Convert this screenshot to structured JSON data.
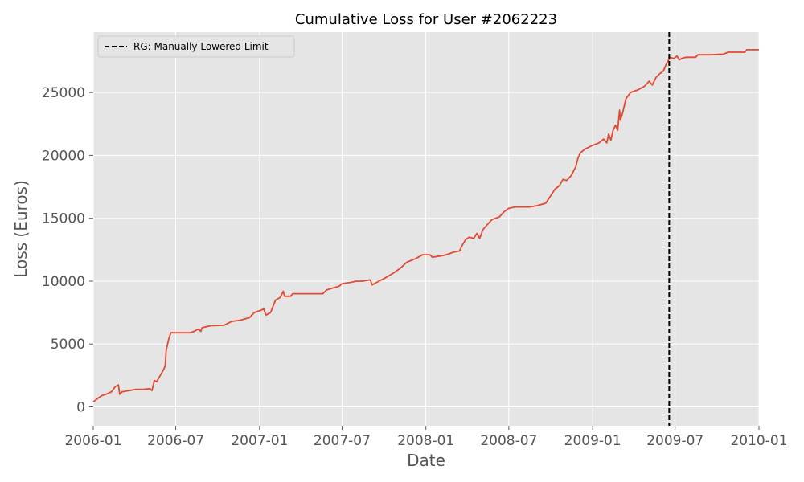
{
  "chart_data": {
    "type": "line",
    "title": "Cumulative Loss for User #2062223",
    "xlabel": "Date",
    "ylabel": "Loss (Euros)",
    "xlim": [
      "2006-01-01",
      "2010-01-01"
    ],
    "ylim": [
      -1500,
      29800
    ],
    "x_ticks": [
      "2006-01",
      "2006-07",
      "2007-01",
      "2007-07",
      "2008-01",
      "2008-07",
      "2009-01",
      "2009-07",
      "2010-01"
    ],
    "y_ticks": [
      0,
      5000,
      10000,
      15000,
      20000,
      25000
    ],
    "grid": true,
    "background": "#e5e5e5",
    "series": [
      {
        "color": "#e24a33",
        "points": [
          [
            "2006-01-01",
            400
          ],
          [
            "2006-01-10",
            650
          ],
          [
            "2006-01-20",
            900
          ],
          [
            "2006-02-01",
            1050
          ],
          [
            "2006-02-10",
            1200
          ],
          [
            "2006-02-18",
            1600
          ],
          [
            "2006-02-25",
            1750
          ],
          [
            "2006-02-28",
            1000
          ],
          [
            "2006-03-05",
            1200
          ],
          [
            "2006-03-20",
            1300
          ],
          [
            "2006-04-05",
            1400
          ],
          [
            "2006-04-20",
            1400
          ],
          [
            "2006-05-05",
            1450
          ],
          [
            "2006-05-10",
            1300
          ],
          [
            "2006-05-15",
            2100
          ],
          [
            "2006-05-20",
            2000
          ],
          [
            "2006-05-28",
            2500
          ],
          [
            "2006-06-05",
            3000
          ],
          [
            "2006-06-08",
            3300
          ],
          [
            "2006-06-10",
            4500
          ],
          [
            "2006-06-15",
            5300
          ],
          [
            "2006-06-20",
            5900
          ],
          [
            "2006-07-01",
            5900
          ],
          [
            "2006-08-01",
            5900
          ],
          [
            "2006-08-10",
            6000
          ],
          [
            "2006-08-20",
            6200
          ],
          [
            "2006-08-25",
            6000
          ],
          [
            "2006-08-28",
            6300
          ],
          [
            "2006-09-15",
            6450
          ],
          [
            "2006-10-15",
            6500
          ],
          [
            "2006-11-01",
            6800
          ],
          [
            "2006-11-20",
            6900
          ],
          [
            "2006-12-10",
            7100
          ],
          [
            "2006-12-20",
            7500
          ],
          [
            "2007-01-05",
            7700
          ],
          [
            "2007-01-10",
            7800
          ],
          [
            "2007-01-15",
            7300
          ],
          [
            "2007-01-25",
            7500
          ],
          [
            "2007-02-05",
            8500
          ],
          [
            "2007-02-15",
            8700
          ],
          [
            "2007-02-22",
            9200
          ],
          [
            "2007-02-25",
            8800
          ],
          [
            "2007-03-10",
            8800
          ],
          [
            "2007-03-15",
            9000
          ],
          [
            "2007-04-15",
            9000
          ],
          [
            "2007-05-20",
            9000
          ],
          [
            "2007-05-28",
            9300
          ],
          [
            "2007-06-15",
            9500
          ],
          [
            "2007-06-25",
            9600
          ],
          [
            "2007-07-01",
            9800
          ],
          [
            "2007-07-20",
            9900
          ],
          [
            "2007-08-01",
            10000
          ],
          [
            "2007-08-15",
            10000
          ],
          [
            "2007-09-01",
            10100
          ],
          [
            "2007-09-05",
            9700
          ],
          [
            "2007-09-15",
            9900
          ],
          [
            "2007-10-01",
            10200
          ],
          [
            "2007-10-20",
            10600
          ],
          [
            "2007-11-05",
            11000
          ],
          [
            "2007-11-20",
            11500
          ],
          [
            "2007-12-10",
            11800
          ],
          [
            "2007-12-25",
            12100
          ],
          [
            "2008-01-10",
            12100
          ],
          [
            "2008-01-15",
            11900
          ],
          [
            "2008-02-01",
            12000
          ],
          [
            "2008-02-15",
            12100
          ],
          [
            "2008-03-01",
            12300
          ],
          [
            "2008-03-15",
            12400
          ],
          [
            "2008-03-20",
            12800
          ],
          [
            "2008-03-28",
            13300
          ],
          [
            "2008-04-05",
            13500
          ],
          [
            "2008-04-15",
            13400
          ],
          [
            "2008-04-22",
            13800
          ],
          [
            "2008-04-28",
            13400
          ],
          [
            "2008-05-05",
            14100
          ],
          [
            "2008-05-15",
            14500
          ],
          [
            "2008-05-25",
            14900
          ],
          [
            "2008-06-10",
            15100
          ],
          [
            "2008-06-20",
            15500
          ],
          [
            "2008-07-01",
            15800
          ],
          [
            "2008-07-15",
            15900
          ],
          [
            "2008-08-15",
            15900
          ],
          [
            "2008-09-01",
            16000
          ],
          [
            "2008-09-20",
            16200
          ],
          [
            "2008-10-01",
            16800
          ],
          [
            "2008-10-10",
            17300
          ],
          [
            "2008-10-20",
            17600
          ],
          [
            "2008-10-28",
            18100
          ],
          [
            "2008-11-05",
            18000
          ],
          [
            "2008-11-15",
            18400
          ],
          [
            "2008-11-25",
            19100
          ],
          [
            "2008-11-30",
            19800
          ],
          [
            "2008-12-05",
            20200
          ],
          [
            "2008-12-15",
            20500
          ],
          [
            "2009-01-01",
            20800
          ],
          [
            "2009-01-15",
            21000
          ],
          [
            "2009-01-25",
            21300
          ],
          [
            "2009-02-01",
            21000
          ],
          [
            "2009-02-05",
            21700
          ],
          [
            "2009-02-10",
            21200
          ],
          [
            "2009-02-15",
            22000
          ],
          [
            "2009-02-20",
            22400
          ],
          [
            "2009-02-25",
            22000
          ],
          [
            "2009-03-01",
            23600
          ],
          [
            "2009-03-03",
            22800
          ],
          [
            "2009-03-08",
            23400
          ],
          [
            "2009-03-15",
            24500
          ],
          [
            "2009-03-25",
            25000
          ],
          [
            "2009-04-10",
            25200
          ],
          [
            "2009-04-25",
            25500
          ],
          [
            "2009-05-05",
            25900
          ],
          [
            "2009-05-12",
            25600
          ],
          [
            "2009-05-20",
            26200
          ],
          [
            "2009-05-28",
            26500
          ],
          [
            "2009-06-05",
            26700
          ],
          [
            "2009-06-12",
            27300
          ],
          [
            "2009-06-20",
            27800
          ],
          [
            "2009-06-28",
            27700
          ],
          [
            "2009-07-05",
            27900
          ],
          [
            "2009-07-10",
            27600
          ],
          [
            "2009-07-15",
            27700
          ],
          [
            "2009-07-25",
            27800
          ],
          [
            "2009-08-15",
            27800
          ],
          [
            "2009-08-20",
            28000
          ],
          [
            "2009-09-15",
            28000
          ],
          [
            "2009-10-15",
            28050
          ],
          [
            "2009-10-25",
            28200
          ],
          [
            "2009-12-01",
            28200
          ],
          [
            "2009-12-05",
            28400
          ],
          [
            "2010-01-01",
            28400
          ]
        ]
      }
    ],
    "reference_line": {
      "orientation": "vertical",
      "x": "2009-06-18",
      "style": "dashed",
      "color": "#000000",
      "label": "RG: Manually Lowered Limit"
    },
    "legend": {
      "placement": "top-left",
      "entries": [
        {
          "label": "RG: Manually Lowered Limit",
          "style": "dashed",
          "color": "#000000"
        }
      ]
    }
  }
}
